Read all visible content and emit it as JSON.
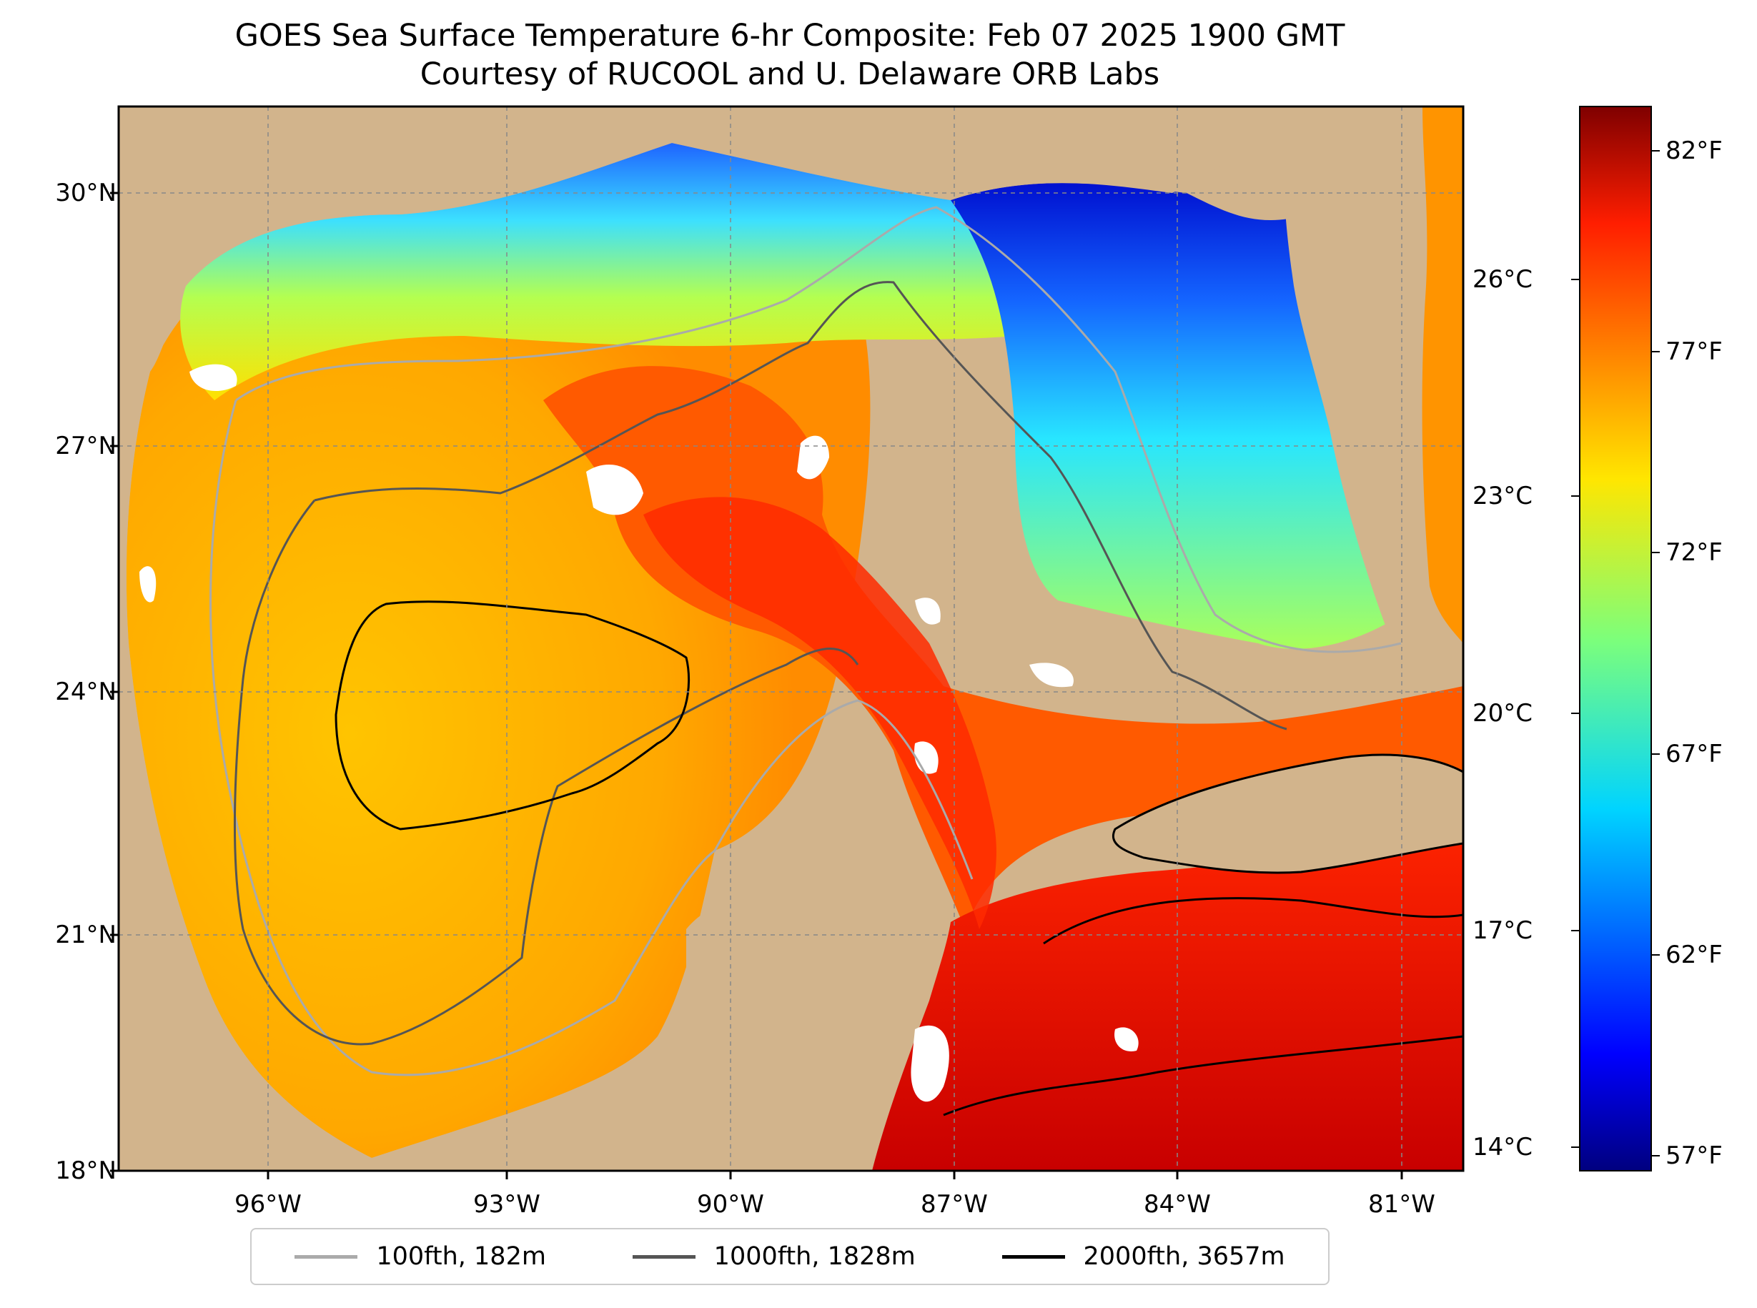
{
  "title": {
    "line1": "GOES Sea Surface Temperature 6-hr Composite: Feb 07 2025 1900 GMT",
    "line2": "Courtesy of RUCOOL and U. Delaware ORB Labs"
  },
  "map": {
    "extent": {
      "lon_min": -98,
      "lon_max": -80,
      "lat_min": 18,
      "lat_max": 31
    },
    "lat_ticks": [
      {
        "value": 30,
        "label": "30°N"
      },
      {
        "value": 27,
        "label": "27°N"
      },
      {
        "value": 24,
        "label": "24°N"
      },
      {
        "value": 21,
        "label": "21°N"
      },
      {
        "value": 18,
        "label": "18°N"
      }
    ],
    "lon_ticks": [
      {
        "value": -96,
        "label": "96°W"
      },
      {
        "value": -93,
        "label": "93°W"
      },
      {
        "value": -90,
        "label": "90°W"
      },
      {
        "value": -87,
        "label": "87°W"
      },
      {
        "value": -84,
        "label": "84°W"
      },
      {
        "value": -81,
        "label": "81°W"
      }
    ],
    "gridlines": true,
    "land_color": "#d2b48c",
    "water_color": "#a0c4e8"
  },
  "colorbar": {
    "colormap": "jet",
    "celsius_ticks": [
      {
        "value": 26,
        "label": "26°C"
      },
      {
        "value": 23,
        "label": "23°C"
      },
      {
        "value": 20,
        "label": "20°C"
      },
      {
        "value": 17,
        "label": "17°C"
      },
      {
        "value": 14,
        "label": "14°C"
      }
    ],
    "fahrenheit_ticks": [
      {
        "value": 82,
        "label": "82°F"
      },
      {
        "value": 77,
        "label": "77°F"
      },
      {
        "value": 72,
        "label": "72°F"
      },
      {
        "value": 67,
        "label": "67°F"
      },
      {
        "value": 62,
        "label": "62°F"
      },
      {
        "value": 57,
        "label": "57°F"
      }
    ]
  },
  "legend": {
    "items": [
      {
        "label": "100fth, 182m",
        "color": "#aaaaaa"
      },
      {
        "label": "1000fth, 1828m",
        "color": "#555555"
      },
      {
        "label": "2000fth, 3657m",
        "color": "#000000"
      }
    ]
  }
}
